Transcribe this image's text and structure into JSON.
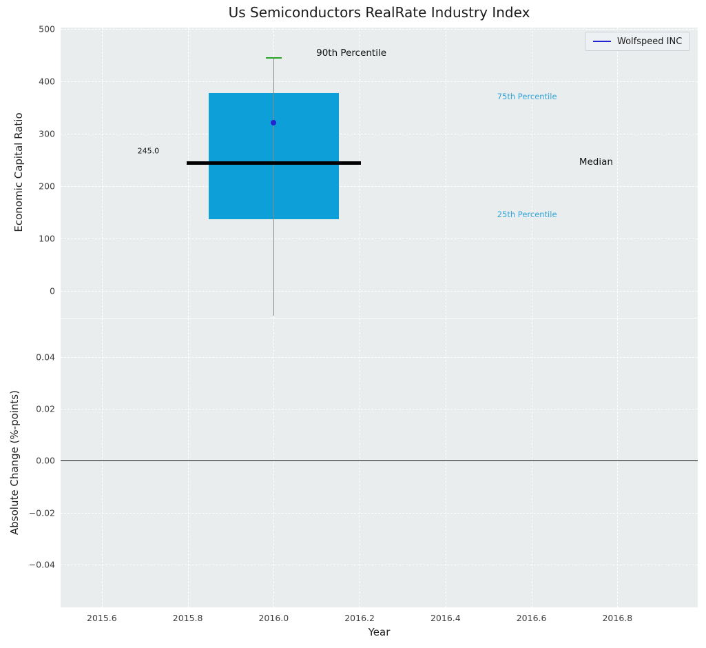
{
  "chart_data": {
    "type": "box",
    "title": "Us Semiconductors RealRate Industry Index",
    "xlabel": "Year",
    "xlim": [
      2015.504,
      2016.987
    ],
    "grid": true,
    "xticks": [
      {
        "v": 2015.6,
        "label": "2015.6"
      },
      {
        "v": 2015.8,
        "label": "2015.8"
      },
      {
        "v": 2016.0,
        "label": "2016.0"
      },
      {
        "v": 2016.2,
        "label": "2016.2"
      },
      {
        "v": 2016.4,
        "label": "2016.4"
      },
      {
        "v": 2016.6,
        "label": "2016.6"
      },
      {
        "v": 2016.8,
        "label": "2016.8"
      }
    ],
    "legend": {
      "position": "upper right",
      "entries": [
        {
          "label": "Wolfspeed INC",
          "color": "#2222d0"
        }
      ]
    },
    "panels": [
      {
        "id": "economic-capital-ratio",
        "ylabel": "Economic Capital Ratio",
        "ylim": [
          -51,
          503
        ],
        "yticks": [
          {
            "v": 0,
            "label": "0"
          },
          {
            "v": 100,
            "label": "100"
          },
          {
            "v": 200,
            "label": "200"
          },
          {
            "v": 300,
            "label": "300"
          },
          {
            "v": 400,
            "label": "400"
          },
          {
            "v": 500,
            "label": "500"
          }
        ],
        "box": {
          "x": 2016.0,
          "q1": 137,
          "median": 245,
          "q3": 378,
          "p90": 445,
          "whisker_low": -47,
          "box_halfwidth": 0.151,
          "median_halfwidth": 0.203,
          "cap_halfwidth": 0.019,
          "box_color": "#0d9fd8",
          "median_color": "#000000",
          "cap_color": "#28a428",
          "whisker_color": "#8a8a8a"
        },
        "marker": {
          "x": 2016.0,
          "y": 322,
          "color": "#2323d1",
          "label": "Wolfspeed INC"
        },
        "annotations": [
          {
            "id": "median-value",
            "text": "245.0",
            "x": 2015.683,
            "y": 268,
            "color": "#111111",
            "size": 11
          },
          {
            "id": "p90-label",
            "text": "90th Percentile",
            "x": 2016.099,
            "y": 454,
            "color": "#111111",
            "size": 13.5
          },
          {
            "id": "p75-label",
            "text": "75th Percentile",
            "x": 2016.52,
            "y": 371,
            "color": "#30a5da",
            "size": 11.5
          },
          {
            "id": "p25-label",
            "text": "25th Percentile",
            "x": 2016.52,
            "y": 146,
            "color": "#30a5da",
            "size": 11.5
          },
          {
            "id": "median-label",
            "text": "Median",
            "x": 2016.711,
            "y": 247,
            "color": "#111111",
            "size": 13.5
          }
        ]
      },
      {
        "id": "absolute-change",
        "ylabel": "Absolute Change (%-points)",
        "ylim": [
          -0.0564,
          0.0548
        ],
        "yticks": [
          {
            "v": 0.04,
            "label": "0.04"
          },
          {
            "v": 0.02,
            "label": "0.02"
          },
          {
            "v": 0.0,
            "label": "0.00"
          },
          {
            "v": -0.02,
            "label": "−0.02"
          },
          {
            "v": -0.04,
            "label": "−0.04"
          }
        ],
        "zero_line": 0.0,
        "zero_line_color": "#000000"
      }
    ]
  }
}
